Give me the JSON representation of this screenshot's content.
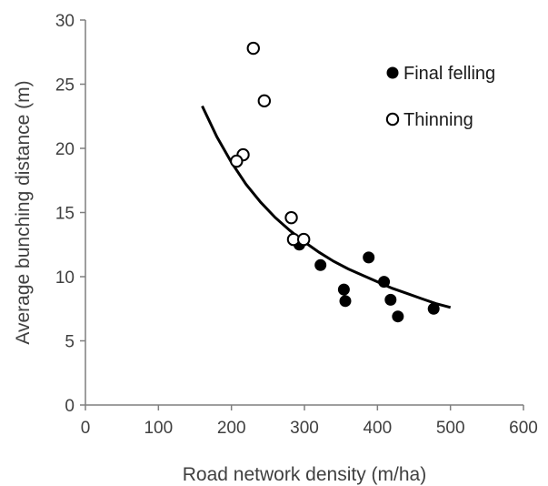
{
  "chart_data": {
    "type": "scatter",
    "xlabel": "Road network density (m/ha)",
    "ylabel": "Average bunching distance (m)",
    "xlim": [
      0,
      600
    ],
    "ylim": [
      0,
      30
    ],
    "xticks": [
      "0",
      "100",
      "200",
      "300",
      "400",
      "500",
      "600"
    ],
    "yticks": [
      "0",
      "5",
      "10",
      "15",
      "20",
      "25",
      "30"
    ],
    "grid": false,
    "legend_position": "top-right",
    "series": [
      {
        "name": "Final felling",
        "marker": "filled-circle",
        "color": "#000000",
        "points": [
          {
            "x": 293,
            "y": 12.5
          },
          {
            "x": 322,
            "y": 10.9
          },
          {
            "x": 354,
            "y": 9.0
          },
          {
            "x": 356,
            "y": 8.1
          },
          {
            "x": 388,
            "y": 11.5
          },
          {
            "x": 409,
            "y": 9.6
          },
          {
            "x": 418,
            "y": 8.2
          },
          {
            "x": 428,
            "y": 6.9
          },
          {
            "x": 477,
            "y": 7.5
          }
        ]
      },
      {
        "name": "Thinning",
        "marker": "open-circle",
        "color": "#000000",
        "points": [
          {
            "x": 230,
            "y": 27.8
          },
          {
            "x": 245,
            "y": 23.7
          },
          {
            "x": 216,
            "y": 19.5
          },
          {
            "x": 207,
            "y": 19.0
          },
          {
            "x": 282,
            "y": 14.6
          },
          {
            "x": 285,
            "y": 12.9
          },
          {
            "x": 299,
            "y": 12.9
          }
        ]
      }
    ],
    "trend_line": {
      "x": [
        160,
        180,
        200,
        220,
        240,
        260,
        280,
        300,
        320,
        340,
        360,
        380,
        400,
        420,
        440,
        460,
        480,
        500
      ],
      "y": [
        23.3,
        20.9,
        18.9,
        17.2,
        15.8,
        14.6,
        13.6,
        12.7,
        11.9,
        11.2,
        10.6,
        10.1,
        9.6,
        9.1,
        8.7,
        8.3,
        7.9,
        7.6
      ]
    }
  }
}
